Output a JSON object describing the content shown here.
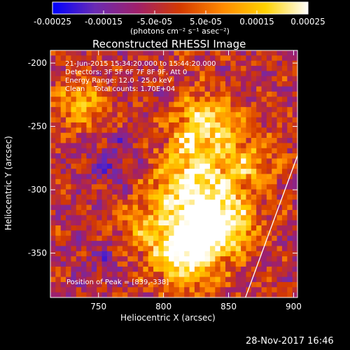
{
  "chart_data": {
    "type": "heatmap",
    "title": "Reconstructed RHESSI Image",
    "xlabel": "Heliocentric X (arcsec)",
    "ylabel": "Heliocentric Y (arcsec)",
    "xlim": [
      713,
      903
    ],
    "ylim": [
      -385,
      -190
    ],
    "x_ticks": [
      "750",
      "800",
      "850",
      "900"
    ],
    "x_tick_values": [
      750,
      800,
      850,
      900
    ],
    "y_ticks": [
      "-200",
      "-250",
      "-300",
      "-350"
    ],
    "y_tick_values": [
      -200,
      -250,
      -300,
      -350
    ],
    "colorbar": {
      "ticks": [
        "-0.00025",
        "-0.00015",
        "-5.0e-05",
        "5.0e-05",
        "0.00015",
        "0.00025"
      ],
      "tick_values": [
        -0.00025,
        -0.00015,
        -5e-05,
        5e-05,
        0.00015,
        0.00025
      ],
      "range": [
        -0.00025,
        0.00025
      ],
      "units_label": "(photons cm⁻² s⁻¹ asec⁻²)",
      "colors": [
        "#0000ff",
        "#6a2bb3",
        "#a0206a",
        "#d43a00",
        "#ff8a00",
        "#ffd200",
        "#ffffff"
      ]
    },
    "annotations": [
      "21-Jun-2015 15:34:20.000 to 15:44:20.000",
      "Detectors: 3F 5F 6F 7F 8F 9F, Att 0",
      "Energy Range: 12.0 - 25.0 keV",
      "Clean    Total counts: 1.70E+04"
    ],
    "peak_label": "Position of Peak = [839,-338]",
    "peak": [
      839,
      -338
    ],
    "limb_line": [
      [
        863,
        -385
      ],
      [
        903,
        -273
      ]
    ],
    "grid": false
  },
  "footer": {
    "timestamp": "28-Nov-2017 16:46"
  }
}
